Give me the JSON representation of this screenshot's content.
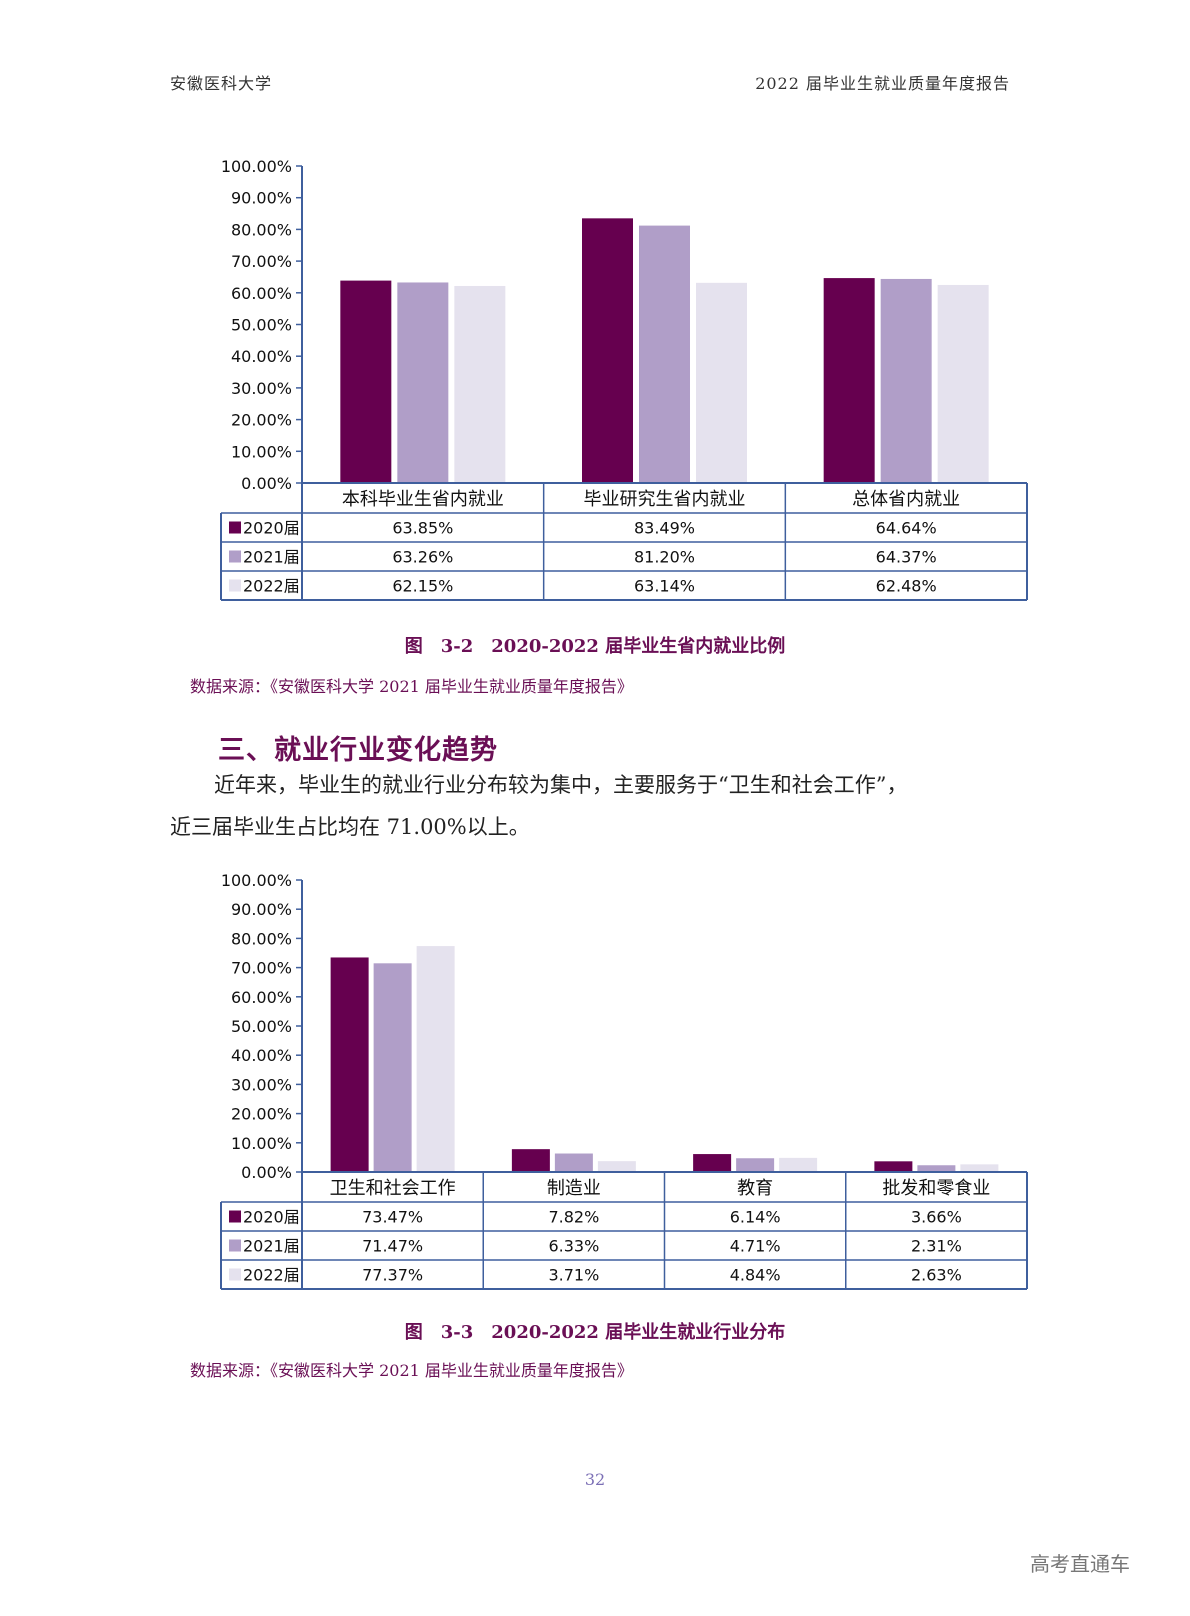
{
  "header": {
    "left": "安徽医科大学",
    "right": "2022 届毕业生就业质量年度报告"
  },
  "colors": {
    "s2020": "#66004f",
    "s2021": "#b09ec8",
    "s2022": "#e5e2ee",
    "axis": "#3f5f9d",
    "accent": "#6a0f55"
  },
  "chart_data": [
    {
      "type": "bar",
      "title": "图 3-2 2020-2022 届毕业生省内就业比例",
      "categories": [
        "本科毕业生省内就业",
        "毕业研究生省内就业",
        "总体省内就业"
      ],
      "series": [
        {
          "name": "2020届",
          "values": [
            63.85,
            83.49,
            64.64
          ],
          "labels": [
            "63.85%",
            "83.49%",
            "64.64%"
          ]
        },
        {
          "name": "2021届",
          "values": [
            63.26,
            81.2,
            64.37
          ],
          "labels": [
            "63.26%",
            "81.20%",
            "64.37%"
          ]
        },
        {
          "name": "2022届",
          "values": [
            62.15,
            63.14,
            62.48
          ],
          "labels": [
            "62.15%",
            "63.14%",
            "62.48%"
          ]
        }
      ],
      "yticks": [
        "0.00%",
        "10.00%",
        "20.00%",
        "30.00%",
        "40.00%",
        "50.00%",
        "60.00%",
        "70.00%",
        "80.00%",
        "90.00%",
        "100.00%"
      ],
      "ylim": [
        0,
        100
      ],
      "grid": false,
      "legend": "data-table"
    },
    {
      "type": "bar",
      "title": "图 3-3 2020-2022 届毕业生就业行业分布",
      "categories": [
        "卫生和社会工作",
        "制造业",
        "教育",
        "批发和零食业"
      ],
      "series": [
        {
          "name": "2020届",
          "values": [
            73.47,
            7.82,
            6.14,
            3.66
          ],
          "labels": [
            "73.47%",
            "7.82%",
            "6.14%",
            "3.66%"
          ]
        },
        {
          "name": "2021届",
          "values": [
            71.47,
            6.33,
            4.71,
            2.31
          ],
          "labels": [
            "71.47%",
            "6.33%",
            "4.71%",
            "2.31%"
          ]
        },
        {
          "name": "2022届",
          "values": [
            77.37,
            3.71,
            4.84,
            2.63
          ],
          "labels": [
            "77.37%",
            "3.71%",
            "4.84%",
            "2.63%"
          ]
        }
      ],
      "yticks": [
        "0.00%",
        "10.00%",
        "20.00%",
        "30.00%",
        "40.00%",
        "50.00%",
        "60.00%",
        "70.00%",
        "80.00%",
        "90.00%",
        "100.00%"
      ],
      "ylim": [
        0,
        100
      ],
      "grid": false,
      "legend": "data-table"
    }
  ],
  "figure1": {
    "caption": "图　3-2　2020-2022 届毕业生省内就业比例",
    "source": "数据来源：《安徽医科大学 2021 届毕业生就业质量年度报告》"
  },
  "section": {
    "title": "三、就业行业变化趋势"
  },
  "paragraph": {
    "line1": "近年来，毕业生的就业行业分布较为集中，主要服务于“卫生和社会工作”，",
    "line2": "近三届毕业生占比均在 71.00%以上。"
  },
  "figure2": {
    "caption": "图　3-3　2020-2022 届毕业生就业行业分布",
    "source": "数据来源：《安徽医科大学 2021 届毕业生就业质量年度报告》"
  },
  "footer": {
    "page_number": "32",
    "watermark": "高考直通车"
  }
}
